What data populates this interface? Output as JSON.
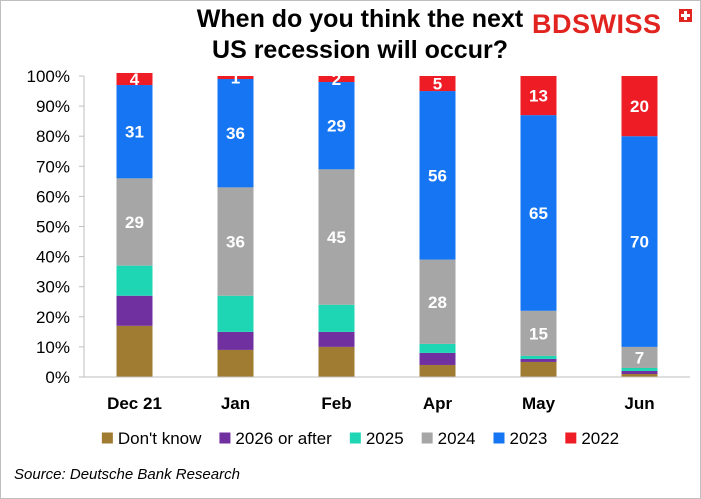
{
  "title_line1": "When do you think the next",
  "title_line2": "US recession will occur?",
  "logo": "BDSWISS",
  "source": "Source: Deutsche Bank Research",
  "chart_data": {
    "type": "bar",
    "stacked": true,
    "categories": [
      "Dec 21",
      "Jan",
      "Feb",
      "Apr",
      "May",
      "Jun"
    ],
    "ylim": [
      0,
      100
    ],
    "yticks": [
      "0%",
      "10%",
      "20%",
      "30%",
      "40%",
      "50%",
      "60%",
      "70%",
      "80%",
      "90%",
      "100%"
    ],
    "grid": false,
    "legend_position": "bottom",
    "series": [
      {
        "name": "Don't know",
        "color": "#a07b32",
        "values": [
          17,
          9,
          10,
          4,
          5,
          1
        ],
        "labels": [
          "",
          "",
          "",
          "",
          "",
          ""
        ]
      },
      {
        "name": "2026 or after",
        "color": "#7030a0",
        "values": [
          10,
          6,
          5,
          4,
          1,
          1
        ],
        "labels": [
          "",
          "",
          "",
          "",
          "",
          ""
        ]
      },
      {
        "name": "2025",
        "color": "#1fd6b4",
        "values": [
          10,
          12,
          9,
          3,
          1,
          1
        ],
        "labels": [
          "",
          "",
          "",
          "",
          "",
          ""
        ]
      },
      {
        "name": "2024",
        "color": "#a6a6a6",
        "values": [
          29,
          36,
          45,
          28,
          15,
          7
        ],
        "labels": [
          "29",
          "36",
          "45",
          "28",
          "15",
          "7"
        ]
      },
      {
        "name": "2023",
        "color": "#1675f2",
        "values": [
          31,
          36,
          29,
          56,
          65,
          70
        ],
        "labels": [
          "31",
          "36",
          "29",
          "56",
          "65",
          "70"
        ]
      },
      {
        "name": "2022",
        "color": "#ee1c25",
        "values": [
          4,
          1,
          2,
          5,
          13,
          20
        ],
        "labels": [
          "4",
          "1",
          "2",
          "5",
          "13",
          "20"
        ]
      }
    ]
  }
}
